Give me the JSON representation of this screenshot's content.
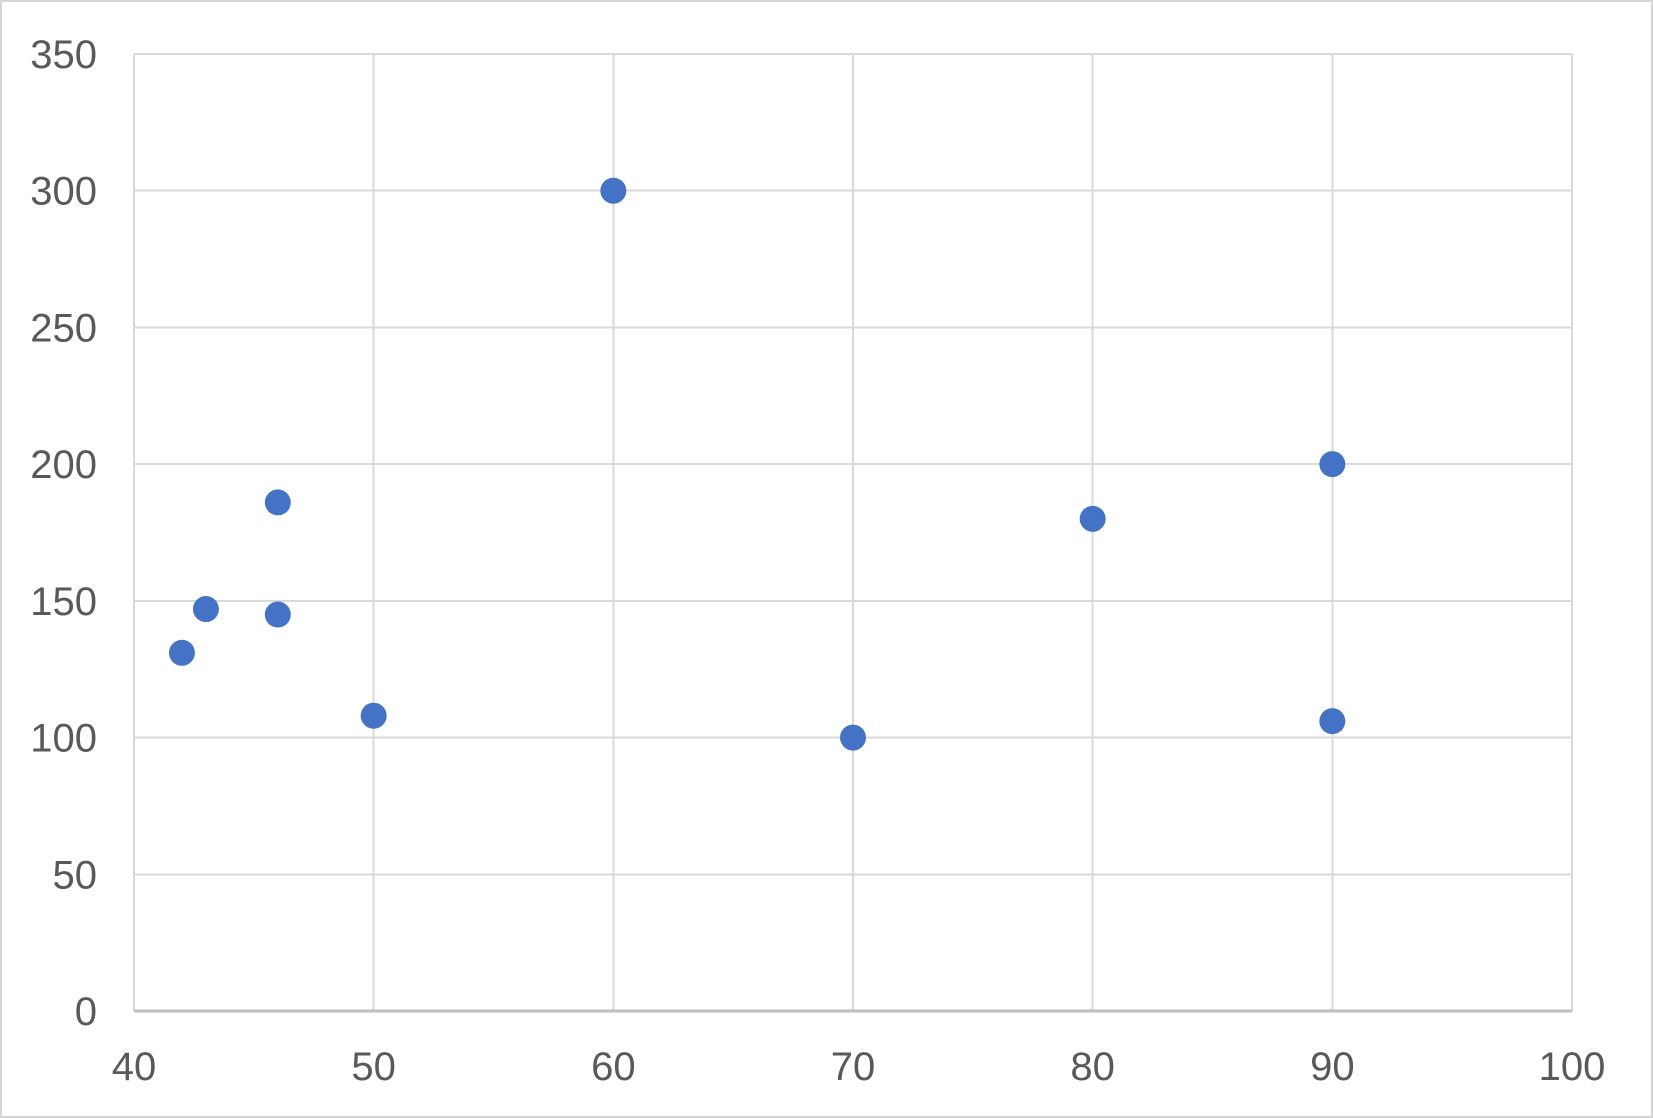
{
  "chart_data": {
    "type": "scatter",
    "title": "",
    "xlabel": "",
    "ylabel": "",
    "xlim": [
      40,
      100
    ],
    "ylim": [
      0,
      350
    ],
    "x_ticks": [
      40,
      50,
      60,
      70,
      80,
      90,
      100
    ],
    "y_ticks": [
      0,
      50,
      100,
      150,
      200,
      250,
      300,
      350
    ],
    "grid": true,
    "legend_position": "none",
    "points": [
      {
        "x": 42,
        "y": 131
      },
      {
        "x": 43,
        "y": 147
      },
      {
        "x": 46,
        "y": 186
      },
      {
        "x": 46,
        "y": 145
      },
      {
        "x": 50,
        "y": 108
      },
      {
        "x": 60,
        "y": 300
      },
      {
        "x": 70,
        "y": 100
      },
      {
        "x": 80,
        "y": 180
      },
      {
        "x": 90,
        "y": 200
      },
      {
        "x": 90,
        "y": 106
      }
    ],
    "colors": {
      "marker": "#4472C4",
      "gridline": "#D9D9D9",
      "axis_line": "#BFBFBF",
      "tick_label": "#595959",
      "plot_background": "#FFFFFF",
      "frame_border": "#D5D5D5"
    }
  }
}
